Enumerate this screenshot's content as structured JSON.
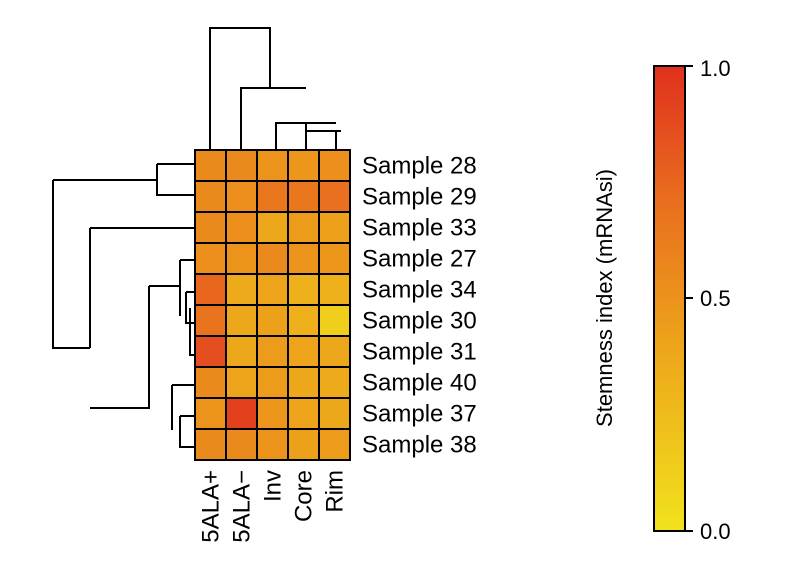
{
  "chart_data": {
    "type": "heatmap",
    "columns": [
      "5ALA+",
      "5ALA−",
      "Inv",
      "Core",
      "Rim"
    ],
    "rows": [
      "Sample 28",
      "Sample 29",
      "Sample 33",
      "Sample 27",
      "Sample 34",
      "Sample 30",
      "Sample 31",
      "Sample 40",
      "Sample 37",
      "Sample 38"
    ],
    "values": [
      [
        0.55,
        0.55,
        0.5,
        0.48,
        0.52
      ],
      [
        0.55,
        0.52,
        0.66,
        0.66,
        0.7
      ],
      [
        0.55,
        0.52,
        0.38,
        0.45,
        0.42
      ],
      [
        0.52,
        0.5,
        0.55,
        0.5,
        0.48
      ],
      [
        0.75,
        0.36,
        0.4,
        0.32,
        0.32
      ],
      [
        0.68,
        0.38,
        0.42,
        0.32,
        0.12
      ],
      [
        0.86,
        0.38,
        0.45,
        0.4,
        0.38
      ],
      [
        0.55,
        0.4,
        0.45,
        0.38,
        0.36
      ],
      [
        0.5,
        0.92,
        0.48,
        0.4,
        0.38
      ],
      [
        0.55,
        0.55,
        0.5,
        0.42,
        0.45
      ]
    ],
    "colorbar": {
      "label": "Stemness index (mRNAsi)",
      "range": [
        0,
        1
      ],
      "ticks": [
        "1.0",
        "0.5",
        "0.0"
      ],
      "colors": [
        "#f1e21c",
        "#eda41b",
        "#e96c1e",
        "#e0301e"
      ]
    },
    "dendrograms": {
      "rows": true,
      "columns": true
    },
    "grid": true
  }
}
